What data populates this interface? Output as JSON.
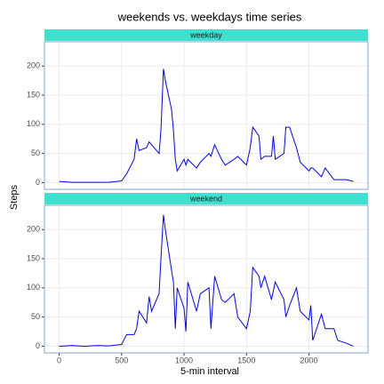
{
  "chart_data": {
    "type": "line",
    "title": "weekends vs. weekdays time series",
    "xlabel": "5-min interval",
    "ylabel": "Steps",
    "x": [
      0,
      100,
      200,
      300,
      400,
      500,
      540,
      600,
      620,
      640,
      700,
      720,
      740,
      800,
      815,
      835,
      850,
      900,
      915,
      930,
      945,
      1000,
      1015,
      1030,
      1100,
      1130,
      1200,
      1215,
      1245,
      1300,
      1330,
      1400,
      1430,
      1500,
      1530,
      1550,
      1600,
      1615,
      1645,
      1700,
      1715,
      1730,
      1800,
      1815,
      1845,
      1900,
      1930,
      2000,
      2015,
      2030,
      2100,
      2130,
      2200,
      2230,
      2300,
      2355
    ],
    "series": [
      {
        "name": "weekday",
        "color": "#0000ff",
        "values": [
          2,
          0.5,
          0.5,
          0.5,
          0.5,
          3,
          15,
          40,
          75,
          55,
          60,
          70,
          65,
          50,
          90,
          195,
          175,
          125,
          90,
          40,
          20,
          40,
          30,
          40,
          25,
          35,
          50,
          45,
          65,
          40,
          30,
          40,
          45,
          30,
          60,
          95,
          80,
          40,
          45,
          45,
          80,
          40,
          50,
          95,
          95,
          60,
          35,
          20,
          25,
          25,
          10,
          25,
          5,
          5,
          5,
          2
        ]
      },
      {
        "name": "weekend",
        "color": "#0000ff",
        "values": [
          0,
          1,
          0,
          1,
          0.5,
          3,
          20,
          20,
          30,
          60,
          40,
          85,
          60,
          90,
          150,
          225,
          200,
          130,
          110,
          30,
          100,
          65,
          25,
          110,
          60,
          90,
          100,
          30,
          120,
          80,
          75,
          90,
          50,
          30,
          60,
          135,
          120,
          100,
          120,
          80,
          95,
          110,
          80,
          50,
          70,
          100,
          60,
          45,
          70,
          10,
          55,
          30,
          30,
          10,
          5,
          0
        ]
      }
    ],
    "xlim": [
      -117.75,
      2472.75
    ],
    "xticks": [
      0,
      500,
      1000,
      1500,
      2000
    ],
    "ylim": [
      -11.5,
      241.5
    ],
    "yticks": [
      0,
      50,
      100,
      150,
      200
    ],
    "strip_color": "#40e0d0",
    "grid": true
  }
}
